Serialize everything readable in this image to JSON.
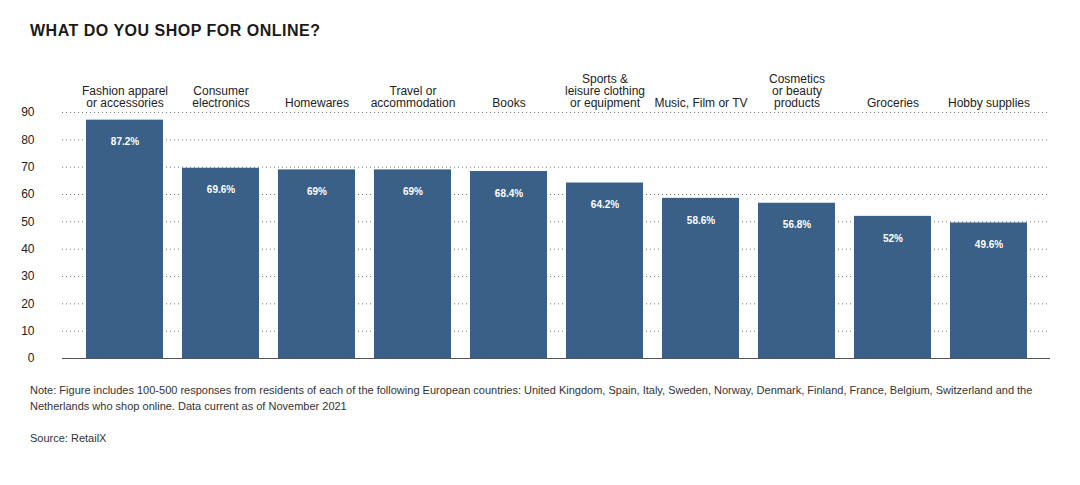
{
  "chart_data": {
    "type": "bar",
    "title": "WHAT DO YOU SHOP FOR ONLINE?",
    "categories": [
      "Fashion apparel\nor accessories",
      "Consumer\nelectronics",
      "Homewares",
      "Travel or\naccommodation",
      "Books",
      "Sports &\nleisure clothing\nor equipment",
      "Music, Film or TV",
      "Cosmetics\nor beauty\nproducts",
      "Groceries",
      "Hobby supplies"
    ],
    "values": [
      87.2,
      69.6,
      69,
      69,
      68.4,
      64.2,
      58.6,
      56.8,
      52,
      49.6
    ],
    "value_labels": [
      "87.2%",
      "69.6%",
      "69%",
      "69%",
      "68.4%",
      "64.2%",
      "58.6%",
      "56.8%",
      "52%",
      "49.6%"
    ],
    "data_labels": true,
    "color": "#3a6087",
    "ylim": [
      0,
      90
    ],
    "yticks": [
      0,
      10,
      20,
      30,
      40,
      50,
      60,
      70,
      80,
      90
    ],
    "grid": true,
    "note": "Note: Figure includes 100-500 responses from residents of each of the following European countries: United Kingdom, Spain, Italy, Sweden, Norway, Denmark, Finland, France, Belgium, Switzerland and the Netherlands who shop online. Data current as of November 2021",
    "source": "Source: RetailX"
  }
}
